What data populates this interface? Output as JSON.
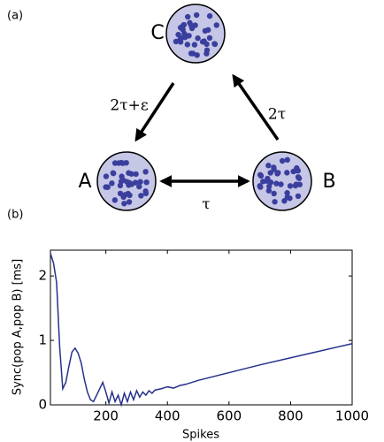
{
  "diagram": {
    "panel_label": "(a)",
    "nodes": [
      {
        "label": "C"
      },
      {
        "label": "A"
      },
      {
        "label": "B"
      }
    ],
    "edges": [
      {
        "label": "2τ+ε"
      },
      {
        "label": "2τ"
      },
      {
        "label": "τ"
      }
    ]
  },
  "chart_data": {
    "type": "line",
    "panel_label": "(b)",
    "x_label": "Spikes",
    "y_label": "Sync(pop A,pop B) [ms]",
    "x": [
      20,
      30,
      40,
      50,
      60,
      70,
      80,
      90,
      100,
      110,
      120,
      130,
      140,
      150,
      160,
      170,
      180,
      190,
      200,
      210,
      220,
      230,
      240,
      250,
      260,
      270,
      280,
      290,
      300,
      310,
      320,
      330,
      340,
      350,
      360,
      380,
      400,
      420,
      440,
      460,
      500,
      600,
      700,
      800,
      900,
      1000
    ],
    "series": [
      {
        "color": "#27318b",
        "values": [
          2.35,
          2.2,
          1.9,
          0.9,
          0.25,
          0.35,
          0.6,
          0.82,
          0.88,
          0.8,
          0.65,
          0.4,
          0.2,
          0.08,
          0.05,
          0.15,
          0.25,
          0.35,
          0.2,
          0.03,
          0.2,
          0.05,
          0.15,
          0.0,
          0.18,
          0.05,
          0.2,
          0.08,
          0.22,
          0.12,
          0.2,
          0.15,
          0.22,
          0.18,
          0.23,
          0.25,
          0.28,
          0.26,
          0.3,
          0.32,
          0.38,
          0.5,
          0.62,
          0.73,
          0.84,
          0.95
        ]
      }
    ],
    "xlim": [
      20,
      1000
    ],
    "ylim": [
      0,
      2.4
    ],
    "xticks": [
      200,
      400,
      600,
      800,
      1000
    ],
    "yticks": [
      0,
      1,
      2
    ]
  }
}
